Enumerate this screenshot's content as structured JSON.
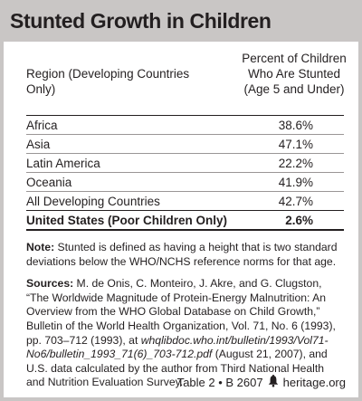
{
  "title": "Stunted Growth in Children",
  "table": {
    "col_region": "Region (Developing Countries Only)",
    "col_percent": "Percent of Children Who Are Stunted (Age 5 and Under)",
    "rows": [
      {
        "region": "Africa",
        "value": "38.6%"
      },
      {
        "region": "Asia",
        "value": "47.1%"
      },
      {
        "region": "Latin America",
        "value": "22.2%"
      },
      {
        "region": "Oceania",
        "value": "41.9%"
      },
      {
        "region": "All Developing Countries",
        "value": "42.7%"
      }
    ],
    "us_row": {
      "region": "United States (Poor Children Only)",
      "value": "2.6%"
    }
  },
  "note": {
    "label": "Note:",
    "text": " Stunted is defined as having a height that is two standard deviations below the WHO/NCHS reference norms for that age."
  },
  "sources": {
    "label": "Sources:",
    "text_before": " M. de Onis, C. Monteiro, J. Akre, and G. Clugston, “The Worldwide Magnitude of Protein-Energy Malnutrition: An Overview from the WHO Global Database on Child Growth,” Bulletin of the World Health Organization, Vol. 71, No. 6 (1993), pp. 703–712 (1993), at ",
    "url": "whqlibdoc.who.int/bulletin/1993/Vol71-No6/bulletin_1993_71(6)_703-712.pdf",
    "text_after": " (August 21, 2007), and U.S. data calculated by the author from Third National Health and Nutrition Evaluation Survey."
  },
  "footer": {
    "left": "Table 2 • B 2607",
    "icon": "liberty-bell-icon",
    "right": "heritage.org"
  }
}
